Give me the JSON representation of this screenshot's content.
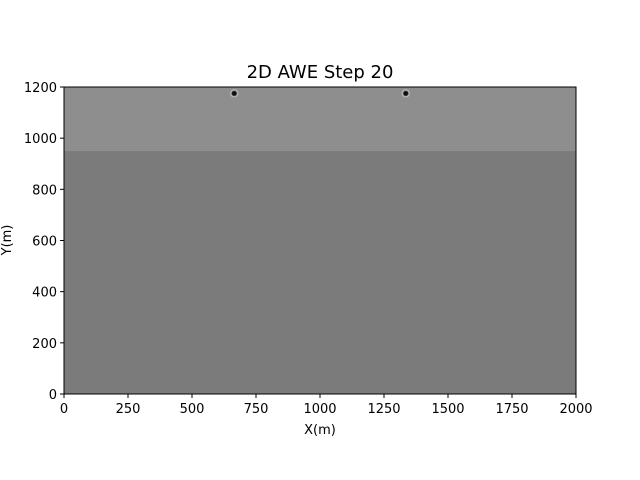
{
  "chart_data": {
    "type": "heatmap",
    "title": "2D AWE Step 20",
    "xlabel": "X(m)",
    "ylabel": "Y(m)",
    "xlim": [
      0,
      2000
    ],
    "ylim": [
      0,
      1200
    ],
    "xticks": [
      0,
      250,
      500,
      750,
      1000,
      1250,
      1500,
      1750,
      2000
    ],
    "yticks": [
      0,
      200,
      400,
      600,
      800,
      1000,
      1200
    ],
    "grid": false,
    "colormap": "gray",
    "layers": [
      {
        "y_from": 950,
        "y_to": 1200,
        "color": "#8e8e8e"
      },
      {
        "y_from": 0,
        "y_to": 950,
        "color": "#7b7b7b"
      }
    ],
    "sources": [
      {
        "x": 665,
        "y": 1175
      },
      {
        "x": 1335,
        "y": 1175
      }
    ]
  }
}
